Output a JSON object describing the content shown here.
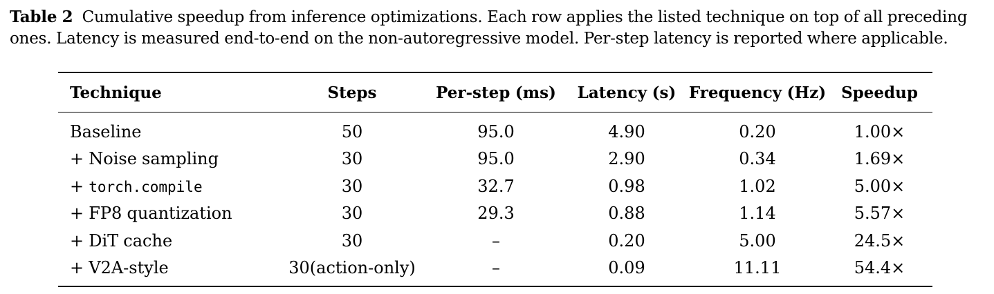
{
  "caption": {
    "label": "Table 2",
    "text": "Cumulative speedup from inference optimizations. Each row applies the listed technique on top of all preceding ones. Latency is measured end-to-end on the non-autoregressive model. Per-step latency is reported where applicable."
  },
  "table": {
    "headers": [
      "Technique",
      "Steps",
      "Per-step (ms)",
      "Latency (s)",
      "Frequency (Hz)",
      "Speedup"
    ],
    "rows": [
      {
        "prefix": "",
        "technique": "Baseline",
        "steps": "50",
        "per_step": "95.0",
        "latency": "4.90",
        "frequency": "0.20",
        "speedup": "1.00×"
      },
      {
        "prefix": "+ ",
        "technique": "Noise sampling",
        "steps": "30",
        "per_step": "95.0",
        "latency": "2.90",
        "frequency": "0.34",
        "speedup": "1.69×"
      },
      {
        "prefix": "+ ",
        "technique": "torch.compile",
        "steps": "30",
        "per_step": "32.7",
        "latency": "0.98",
        "frequency": "1.02",
        "speedup": "5.00×"
      },
      {
        "prefix": "+ ",
        "technique": "FP8 quantization",
        "steps": "30",
        "per_step": "29.3",
        "latency": "0.88",
        "frequency": "1.14",
        "speedup": "5.57×"
      },
      {
        "prefix": "+ ",
        "technique": "DiT cache",
        "steps": "30",
        "per_step": "–",
        "latency": "0.20",
        "frequency": "5.00",
        "speedup": "24.5×"
      },
      {
        "prefix": "+ ",
        "technique": "V2A-style",
        "steps": "30(action-only)",
        "per_step": "–",
        "latency": "0.09",
        "frequency": "11.11",
        "speedup": "54.4×"
      }
    ]
  }
}
